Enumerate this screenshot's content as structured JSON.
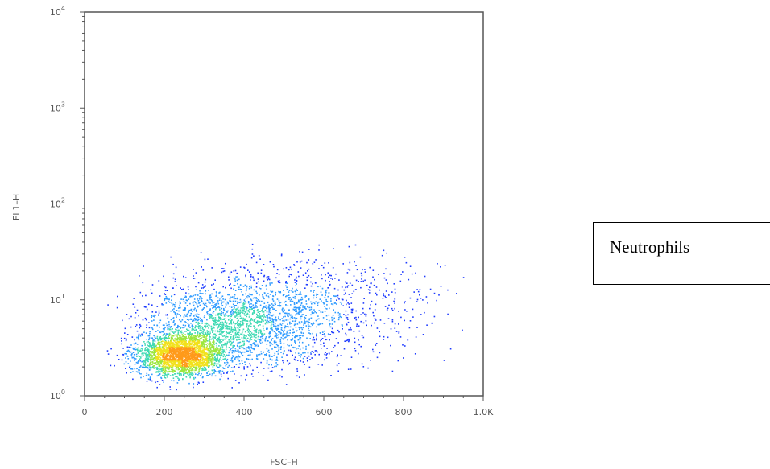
{
  "annotation": {
    "label": "Neutrophils"
  },
  "chart_data": {
    "type": "scatter",
    "subtype": "flow-cytometry-density-dot-plot",
    "title": "",
    "xlabel": "FSC–H",
    "ylabel": "FL1–H",
    "xlim": [
      0,
      1000
    ],
    "ylim": [
      1,
      10000
    ],
    "yscale": "log",
    "grid": false,
    "x_ticks": [
      0,
      200,
      400,
      600,
      800,
      1000
    ],
    "x_tick_labels": [
      "0",
      "200",
      "400",
      "600",
      "800",
      "1.0K"
    ],
    "y_ticks": [
      1,
      10,
      100,
      1000,
      10000
    ],
    "y_tick_labels": [
      {
        "base": "10",
        "exp": "0"
      },
      {
        "base": "10",
        "exp": "1"
      },
      {
        "base": "10",
        "exp": "2"
      },
      {
        "base": "10",
        "exp": "3"
      },
      {
        "base": "10",
        "exp": "4"
      }
    ],
    "density_colormap": [
      "#1f3cff",
      "#2e9bff",
      "#3fd9b3",
      "#9be63c",
      "#f2e11c",
      "#ff9a1a"
    ],
    "populations": [
      {
        "name": "",
        "x_center": 240,
        "y_center": 2.7,
        "x_spread": 55,
        "y_log_spread": 0.11,
        "count": 2600
      },
      {
        "name": "",
        "x_center": 380,
        "y_center": 5.5,
        "x_spread": 120,
        "y_log_spread": 0.22,
        "count": 2000
      },
      {
        "name": "",
        "x_center": 560,
        "y_center": 9,
        "x_spread": 170,
        "y_log_spread": 0.28,
        "count": 800
      }
    ]
  }
}
